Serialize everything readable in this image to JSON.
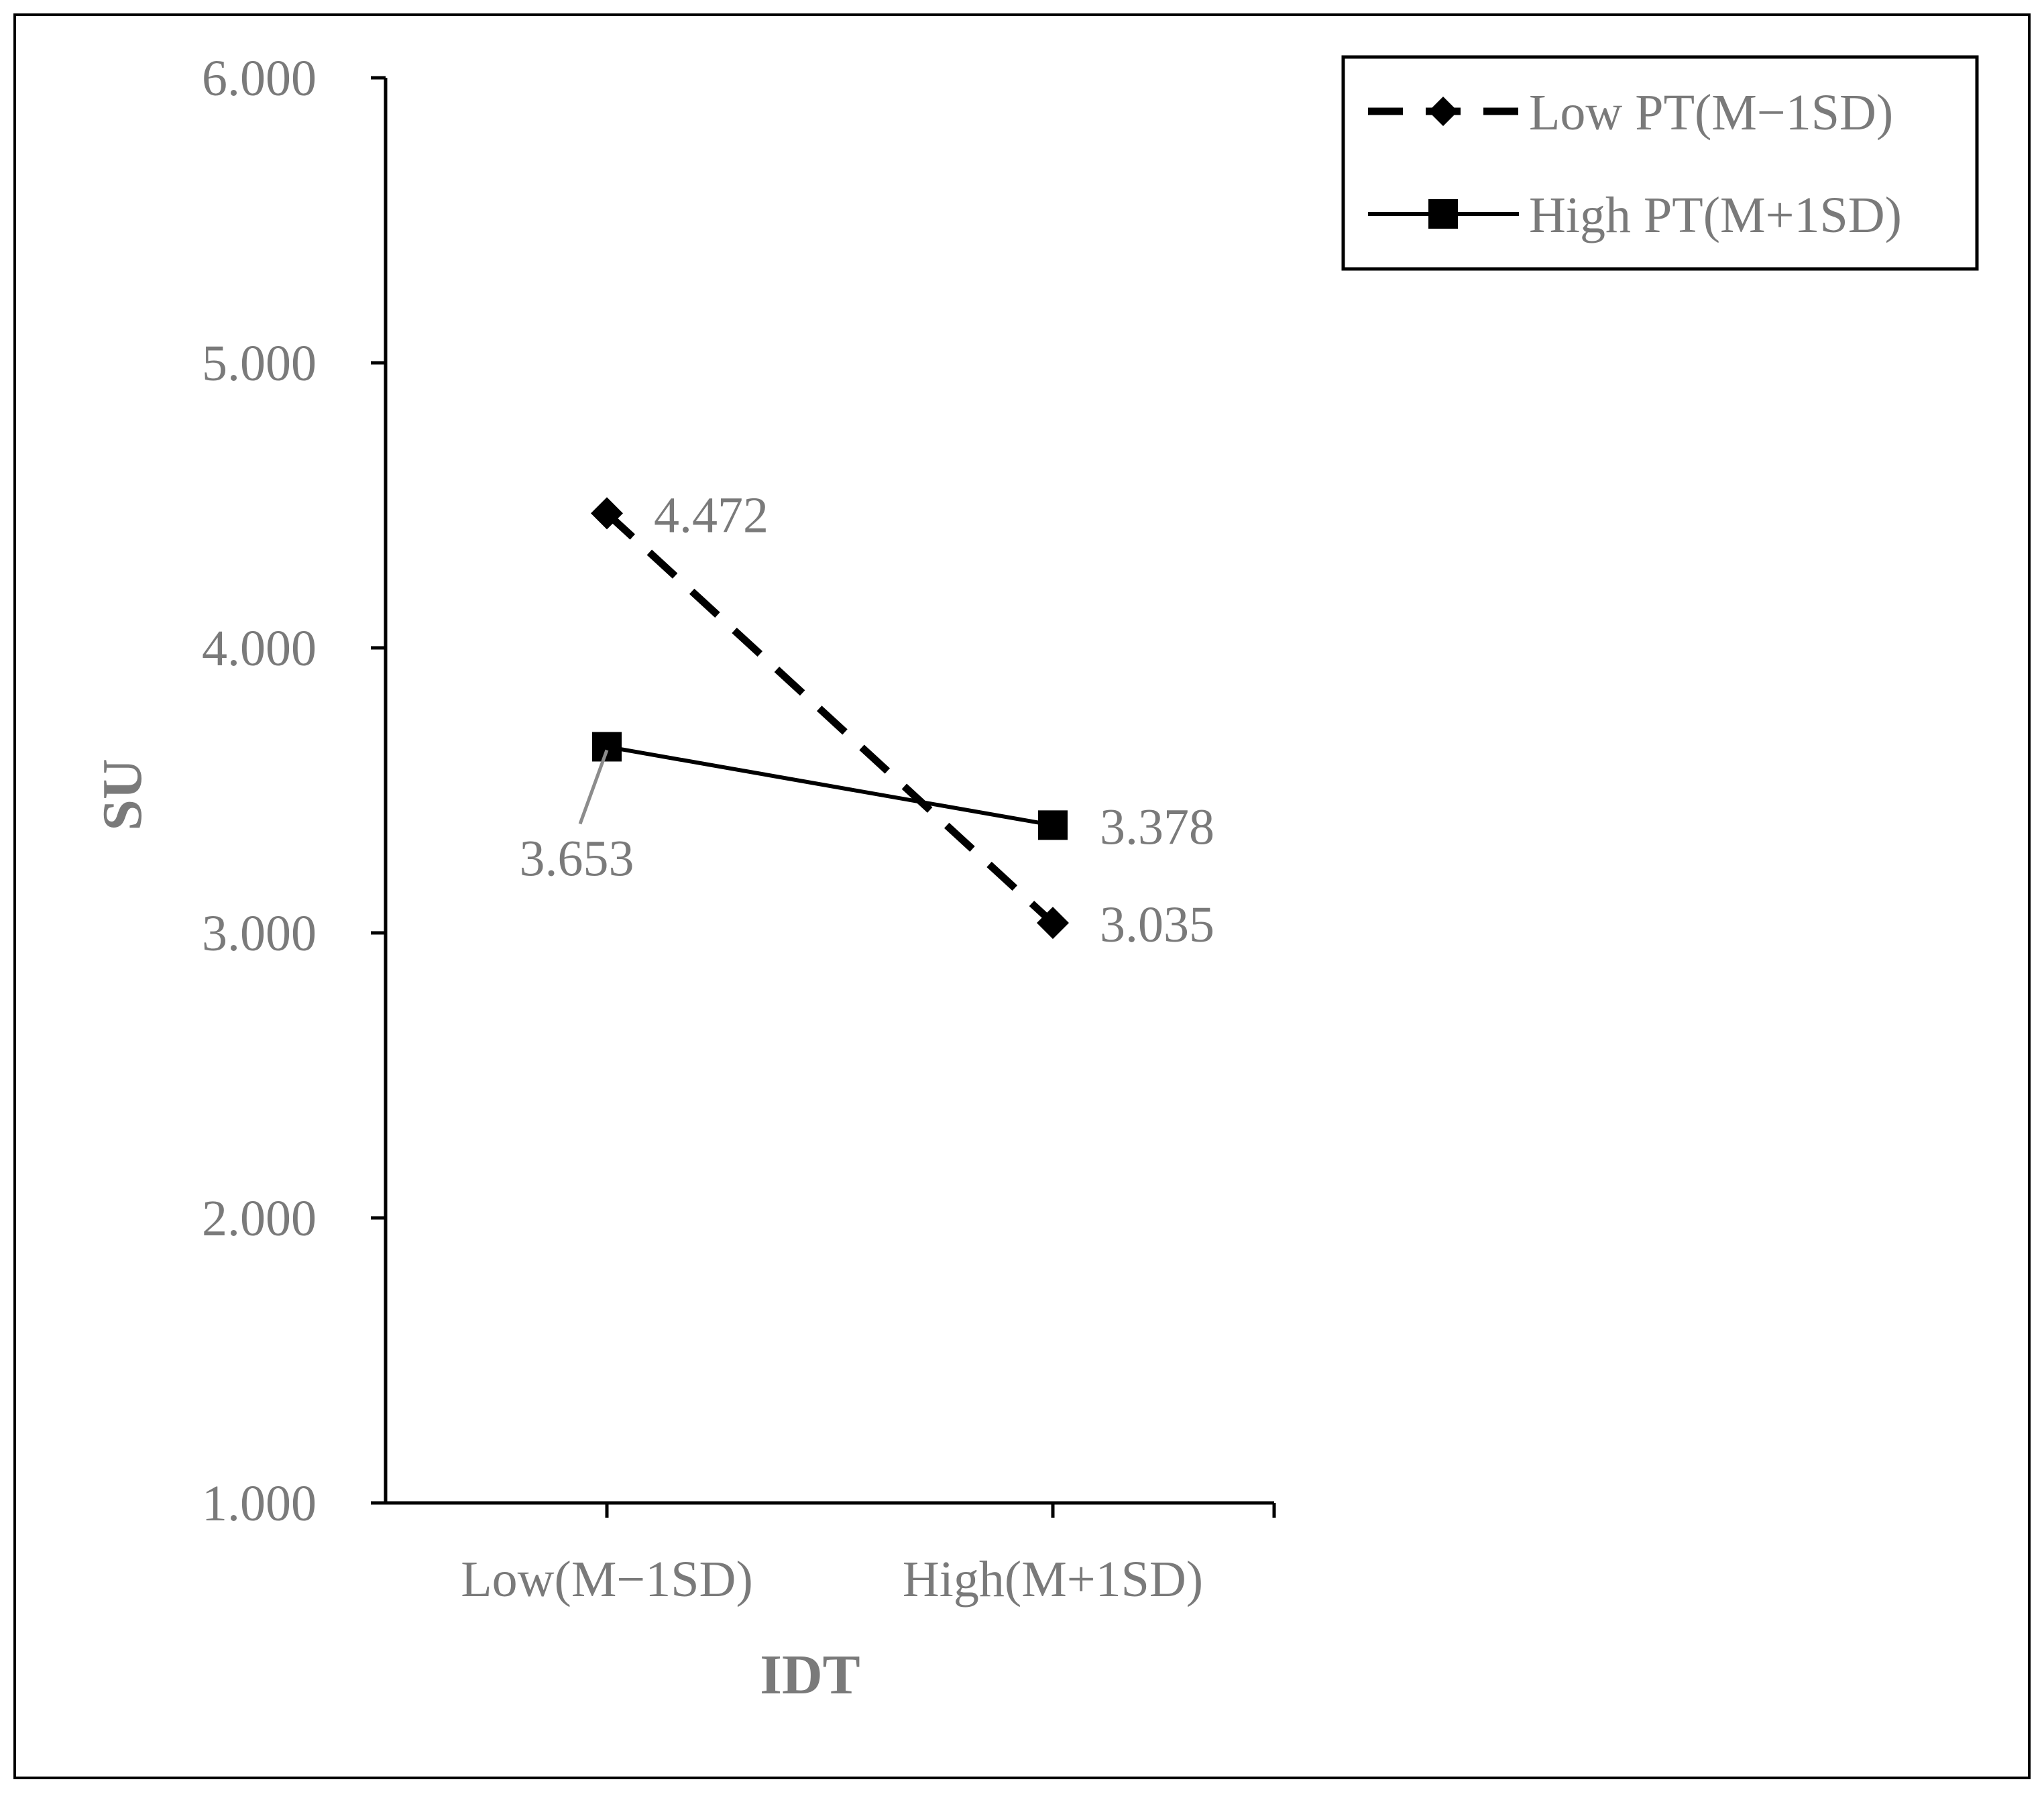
{
  "chart_data": {
    "type": "line",
    "title": "",
    "xlabel": "IDT",
    "ylabel": "SU",
    "categories": [
      "Low(M−1SD)",
      "High(M+1SD)"
    ],
    "ylim": [
      1,
      6
    ],
    "yticks": [
      1,
      2,
      3,
      4,
      5,
      6
    ],
    "ytick_labels": [
      "1.000",
      "2.000",
      "3.000",
      "4.000",
      "5.000",
      "6.000"
    ],
    "grid": false,
    "legend_position": "top-right",
    "series": [
      {
        "name": "Low PT(M−1SD)",
        "values": [
          4.472,
          3.035
        ],
        "value_labels": [
          "4.472",
          "3.035"
        ],
        "line_style": "dashed",
        "marker": "diamond",
        "color": "#000000"
      },
      {
        "name": "High PT(M+1SD)",
        "values": [
          3.653,
          3.378
        ],
        "value_labels": [
          "3.653",
          "3.378"
        ],
        "line_style": "solid",
        "marker": "square",
        "color": "#000000"
      }
    ],
    "colors": {
      "text": "#7a7a7a",
      "axis": "#000000",
      "leader": "#8c8c8c"
    }
  }
}
